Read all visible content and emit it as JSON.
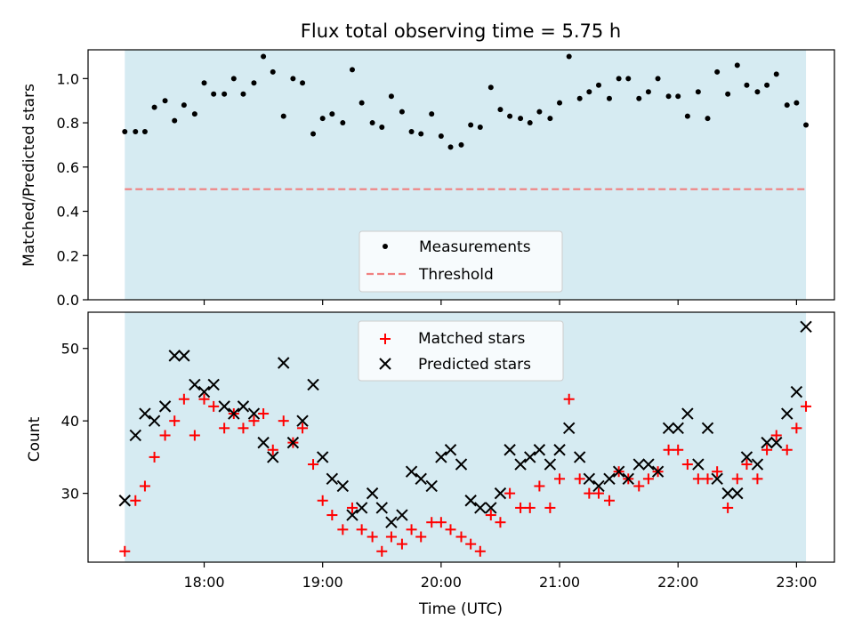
{
  "chart_data": [
    {
      "type": "scatter",
      "title": "Flux total observing time = 5.75 h",
      "xlabel": "",
      "ylabel": "Matched/Predicted stars",
      "ylim": [
        0,
        1.13
      ],
      "xlim": [
        17.02,
        23.32
      ],
      "yticks": [
        0.0,
        0.2,
        0.4,
        0.6,
        0.8,
        1.0
      ],
      "ytick_labels": [
        "0.0",
        "0.2",
        "0.4",
        "0.6",
        "0.8",
        "1.0"
      ],
      "shaded_span": [
        17.33,
        23.08
      ],
      "shade_color": "#add8e6",
      "grid": false,
      "legend_position": "lower-center",
      "series": [
        {
          "name": "Measurements",
          "marker": "dot",
          "color": "#000000",
          "x": [
            17.33,
            17.42,
            17.5,
            17.58,
            17.67,
            17.75,
            17.83,
            17.92,
            18.0,
            18.08,
            18.17,
            18.25,
            18.33,
            18.42,
            18.5,
            18.58,
            18.67,
            18.75,
            18.83,
            18.92,
            19.0,
            19.08,
            19.17,
            19.25,
            19.33,
            19.42,
            19.5,
            19.58,
            19.67,
            19.75,
            19.83,
            19.92,
            20.0,
            20.08,
            20.17,
            20.25,
            20.33,
            20.42,
            20.5,
            20.58,
            20.67,
            20.75,
            20.83,
            20.92,
            21.0,
            21.08,
            21.17,
            21.25,
            21.33,
            21.42,
            21.5,
            21.58,
            21.67,
            21.75,
            21.83,
            21.92,
            22.0,
            22.08,
            22.17,
            22.25,
            22.33,
            22.42,
            22.5,
            22.58,
            22.67,
            22.75,
            22.83,
            22.92,
            23.0,
            23.08
          ],
          "y": [
            0.76,
            0.76,
            0.76,
            0.87,
            0.9,
            0.81,
            0.88,
            0.84,
            0.98,
            0.93,
            0.93,
            1.0,
            0.93,
            0.98,
            1.1,
            1.03,
            0.83,
            1.0,
            0.98,
            0.75,
            0.82,
            0.84,
            0.8,
            1.04,
            0.89,
            0.8,
            0.78,
            0.92,
            0.85,
            0.76,
            0.75,
            0.84,
            0.74,
            0.69,
            0.7,
            0.79,
            0.78,
            0.96,
            0.86,
            0.83,
            0.82,
            0.8,
            0.85,
            0.82,
            0.89,
            1.1,
            0.91,
            0.94,
            0.97,
            0.91,
            1.0,
            1.0,
            0.91,
            0.94,
            1.0,
            0.92,
            0.92,
            0.83,
            0.94,
            0.82,
            1.03,
            0.93,
            1.06,
            0.97,
            0.94,
            0.97,
            1.02,
            0.88,
            0.89,
            0.79
          ]
        },
        {
          "name": "Threshold",
          "line": "dashed",
          "color": "#f08080",
          "x": [
            17.33,
            23.08
          ],
          "y": [
            0.5,
            0.5
          ]
        }
      ]
    },
    {
      "type": "scatter",
      "title": "",
      "xlabel": "Time (UTC)",
      "ylabel": "Count",
      "ylim": [
        20.5,
        55.0
      ],
      "xlim": [
        17.02,
        23.32
      ],
      "yticks": [
        30,
        40,
        50
      ],
      "ytick_labels": [
        "30",
        "40",
        "50"
      ],
      "xticks": [
        18.0,
        19.0,
        20.0,
        21.0,
        22.0,
        23.0
      ],
      "xtick_labels": [
        "18:00",
        "19:00",
        "20:00",
        "21:00",
        "22:00",
        "23:00"
      ],
      "shaded_span": [
        17.33,
        23.08
      ],
      "shade_color": "#add8e6",
      "grid": false,
      "legend_position": "upper-center",
      "series": [
        {
          "name": "Matched stars",
          "marker": "plus",
          "color": "#ff0000",
          "x": [
            17.33,
            17.42,
            17.5,
            17.58,
            17.67,
            17.75,
            17.83,
            17.92,
            18.0,
            18.08,
            18.17,
            18.25,
            18.33,
            18.42,
            18.5,
            18.58,
            18.67,
            18.75,
            18.83,
            18.92,
            19.0,
            19.08,
            19.17,
            19.25,
            19.33,
            19.42,
            19.5,
            19.58,
            19.67,
            19.75,
            19.83,
            19.92,
            20.0,
            20.08,
            20.17,
            20.25,
            20.33,
            20.42,
            20.5,
            20.58,
            20.67,
            20.75,
            20.83,
            20.92,
            21.0,
            21.08,
            21.17,
            21.25,
            21.33,
            21.42,
            21.5,
            21.58,
            21.67,
            21.75,
            21.83,
            21.92,
            22.0,
            22.08,
            22.17,
            22.25,
            22.33,
            22.42,
            22.5,
            22.58,
            22.67,
            22.75,
            22.83,
            22.92,
            23.0,
            23.08
          ],
          "y": [
            22,
            29,
            31,
            35,
            38,
            40,
            43,
            38,
            43,
            42,
            39,
            41,
            39,
            40,
            41,
            36,
            40,
            37,
            39,
            34,
            29,
            27,
            25,
            28,
            25,
            24,
            22,
            24,
            23,
            25,
            24,
            26,
            26,
            25,
            24,
            23,
            22,
            27,
            26,
            30,
            28,
            28,
            31,
            28,
            32,
            43,
            32,
            30,
            30,
            29,
            33,
            32,
            31,
            32,
            33,
            36,
            36,
            34,
            32,
            32,
            33,
            28,
            32,
            34,
            32,
            36,
            38,
            36,
            39,
            42
          ]
        },
        {
          "name": "Predicted stars",
          "marker": "x",
          "color": "#000000",
          "x": [
            17.33,
            17.42,
            17.5,
            17.58,
            17.67,
            17.75,
            17.83,
            17.92,
            18.0,
            18.08,
            18.17,
            18.25,
            18.33,
            18.42,
            18.5,
            18.58,
            18.67,
            18.75,
            18.83,
            18.92,
            19.0,
            19.08,
            19.17,
            19.25,
            19.33,
            19.42,
            19.5,
            19.58,
            19.67,
            19.75,
            19.83,
            19.92,
            20.0,
            20.08,
            20.17,
            20.25,
            20.33,
            20.42,
            20.5,
            20.58,
            20.67,
            20.75,
            20.83,
            20.92,
            21.0,
            21.08,
            21.17,
            21.25,
            21.33,
            21.42,
            21.5,
            21.58,
            21.67,
            21.75,
            21.83,
            21.92,
            22.0,
            22.08,
            22.17,
            22.25,
            22.33,
            22.42,
            22.5,
            22.58,
            22.67,
            22.75,
            22.83,
            22.92,
            23.0,
            23.08
          ],
          "y": [
            29,
            38,
            41,
            40,
            42,
            49,
            49,
            45,
            44,
            45,
            42,
            41,
            42,
            41,
            37,
            35,
            48,
            37,
            40,
            45,
            35,
            32,
            31,
            27,
            28,
            30,
            28,
            26,
            27,
            33,
            32,
            31,
            35,
            36,
            34,
            29,
            28,
            28,
            30,
            36,
            34,
            35,
            36,
            34,
            36,
            39,
            35,
            32,
            31,
            32,
            33,
            32,
            34,
            34,
            33,
            39,
            39,
            41,
            34,
            39,
            32,
            30,
            30,
            35,
            34,
            37,
            37,
            41,
            44,
            53
          ]
        }
      ]
    }
  ]
}
